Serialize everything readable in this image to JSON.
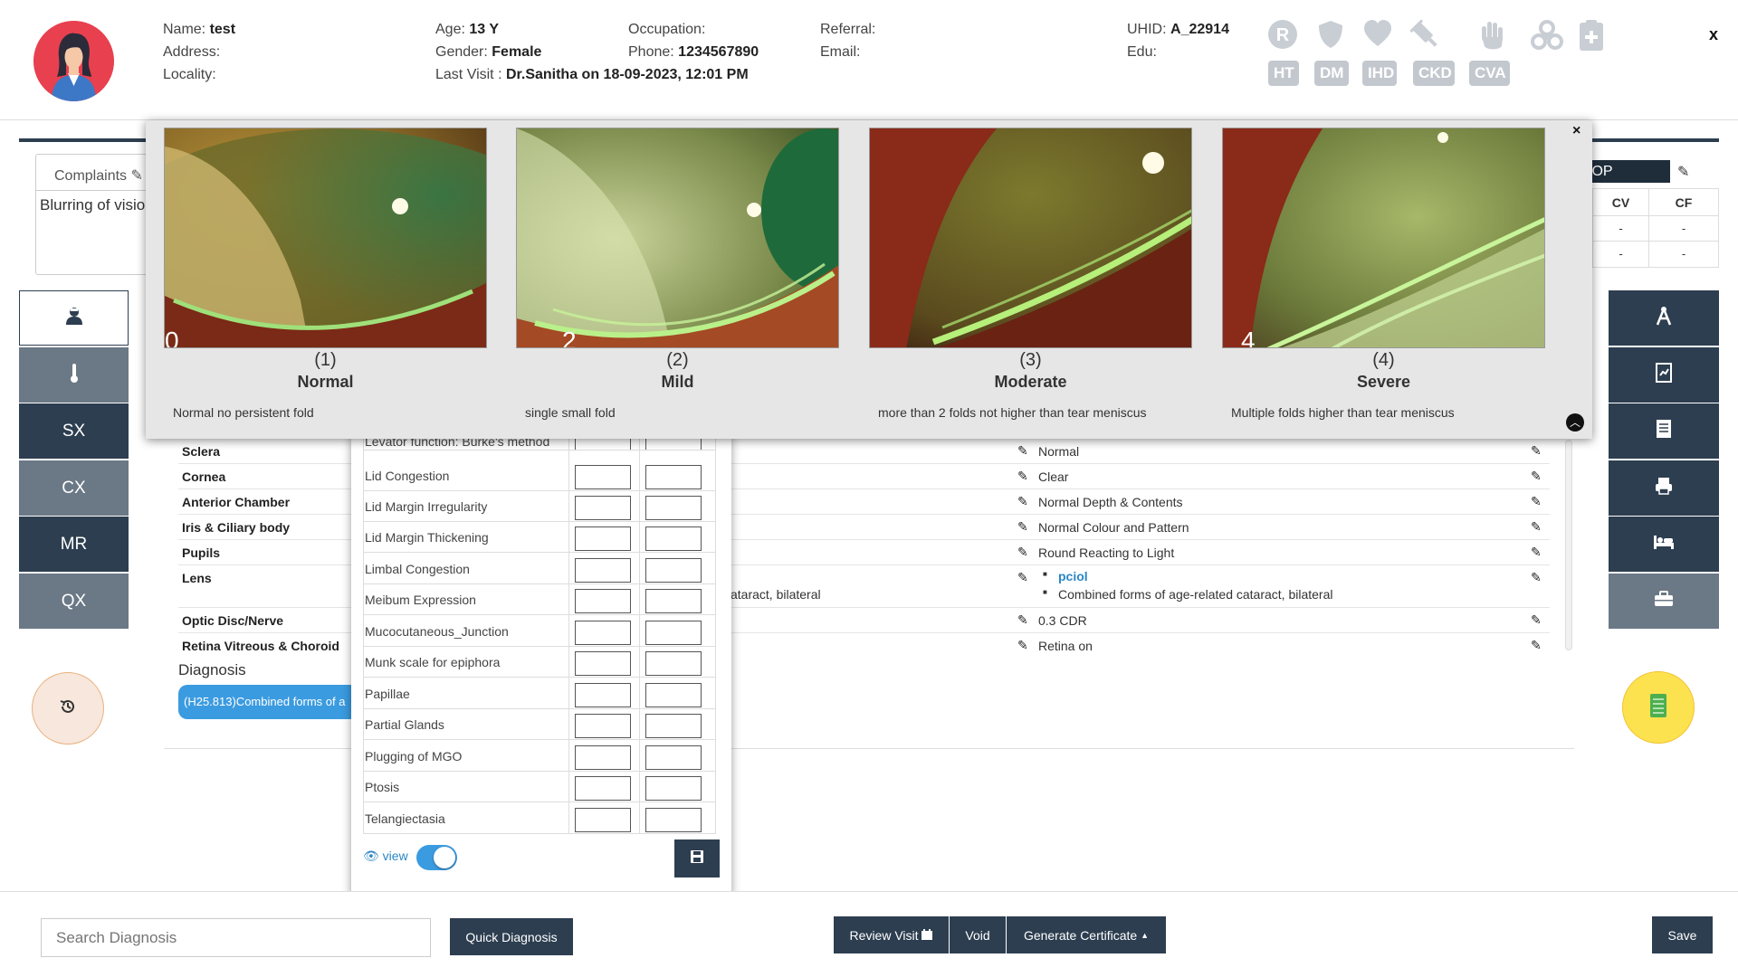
{
  "header": {
    "name_label": "Name:",
    "name": "test",
    "address_label": "Address:",
    "locality_label": "Locality:",
    "age_label": "Age:",
    "age": "13 Y",
    "gender_label": "Gender:",
    "gender": "Female",
    "last_visit_label": "Last Visit :",
    "last_visit": "Dr.Sanitha on  18-09-2023, 12:01 PM",
    "occupation_label": "Occupation:",
    "phone_label": "Phone:",
    "phone": "1234567890",
    "referral_label": "Referral:",
    "email_label": "Email:",
    "uhid_label": "UHID:",
    "uhid": "A_22914",
    "edu_label": "Edu:",
    "close": "x",
    "condition_icons": [
      "r-icon",
      "shield-icon",
      "heart-icon",
      "syringe-icon",
      "hand-icon",
      "biohazard-icon",
      "clipboard-plus-icon"
    ],
    "badges": [
      "HT",
      "DM",
      "IHD",
      "CKD",
      "CVA"
    ]
  },
  "complaints": {
    "tab_label": "Complaints",
    "text": "Blurring of visio"
  },
  "left_nav": [
    "SX",
    "CX",
    "MR",
    "QX"
  ],
  "iop_table": {
    "label": "IOP",
    "cols": [
      "CV",
      "CF"
    ],
    "rows": [
      [
        "-",
        "-"
      ],
      [
        "-",
        "-"
      ]
    ]
  },
  "grading": {
    "close": "×",
    "items": [
      {
        "num": "(1)",
        "name": "Normal",
        "desc": "Normal no persistent fold",
        "mark": "0"
      },
      {
        "num": "(2)",
        "name": "Mild",
        "desc": "single small fold",
        "mark": "2"
      },
      {
        "num": "(3)",
        "name": "Moderate",
        "desc": "more than 2 folds not higher than tear meniscus",
        "mark": ""
      },
      {
        "num": "(4)",
        "name": "Severe",
        "desc": "Multiple folds higher than tear meniscus",
        "mark": "4"
      }
    ]
  },
  "exam": {
    "rows": [
      {
        "label": "Sclera",
        "od": "",
        "os": "Normal"
      },
      {
        "label": "Cornea",
        "od": "",
        "os": "Clear"
      },
      {
        "label": "Anterior Chamber",
        "od": "",
        "os": "Normal Depth & Contents"
      },
      {
        "label": "Iris & Ciliary body",
        "od": "",
        "os": "Normal Colour and Pattern"
      },
      {
        "label": "Pupils",
        "od": "",
        "os": "Round Reacting to Light"
      },
      {
        "label": "Optic Disc/Nerve",
        "od": "",
        "os": "0.3 CDR"
      },
      {
        "label": "Retina Vitreous & Choroid",
        "od": "",
        "os": "Retina on"
      }
    ],
    "lens_label": "Lens",
    "lens_od_partial": "ataract, bilateral",
    "lens_os": [
      "pciol",
      "Combined forms of age-related cataract, bilateral"
    ]
  },
  "diagnosis": {
    "title": "Diagnosis",
    "chip": "(H25.813)Combined forms of a"
  },
  "lid_popup": {
    "partial_row": "Levator function: Burke's method",
    "rows": [
      "Lid Congestion",
      "Lid Margin Irregularity",
      "Lid Margin Thickening",
      "Limbal Congestion",
      "Meibum Expression",
      "Mucocutaneous_Junction",
      "Munk scale for epiphora",
      "Papillae",
      "Partial Glands",
      "Plugging of MGO",
      "Ptosis",
      "Telangiectasia"
    ],
    "view_label": "view",
    "view_on": true
  },
  "footer": {
    "search_placeholder": "Search Diagnosis",
    "quick_diagnosis": "Quick Diagnosis",
    "review_visit": "Review Visit",
    "void": "Void",
    "generate_certificate": "Generate Certificate",
    "save": "Save"
  },
  "colors": {
    "navy": "#2d3e50",
    "slate": "#6b7886",
    "chip": "#3b9be0",
    "accent_yellow": "#fde24f",
    "avatar_bg": "#e8404f"
  }
}
